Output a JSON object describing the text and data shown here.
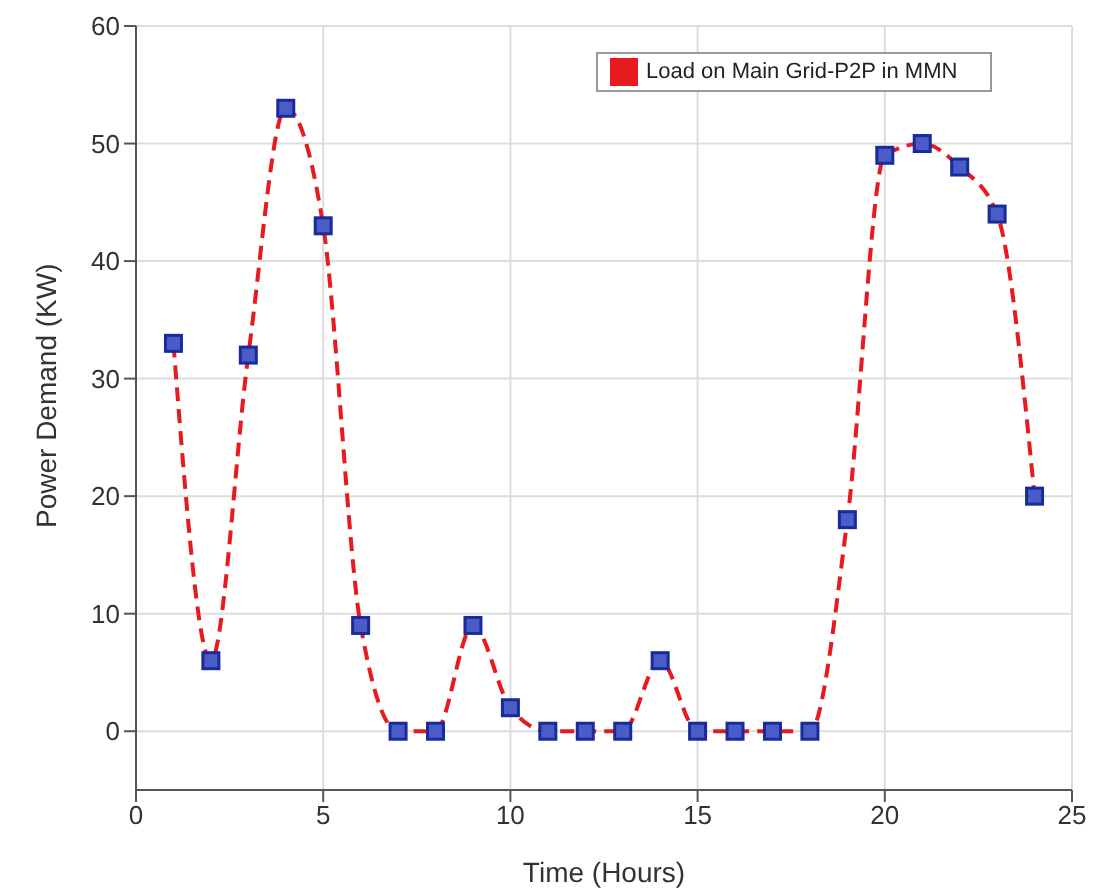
{
  "chart_data": {
    "type": "line",
    "xlabel": "Time (Hours)",
    "ylabel": "Power Demand (KW)",
    "x": [
      1,
      2,
      3,
      4,
      5,
      6,
      7,
      8,
      9,
      10,
      11,
      12,
      13,
      14,
      15,
      16,
      17,
      18,
      19,
      20,
      21,
      22,
      23,
      24
    ],
    "series": [
      {
        "name": "Load on Main Grid-P2P in MMN",
        "color": "#e8191f",
        "values": [
          33,
          6,
          32,
          53,
          43,
          9,
          0,
          0,
          9,
          2,
          0,
          0,
          0,
          6,
          0,
          0,
          0,
          0,
          18,
          49,
          50,
          48,
          44,
          20
        ]
      }
    ],
    "xlim": [
      0,
      25
    ],
    "xticks": [
      0,
      5,
      10,
      15,
      20,
      25
    ],
    "ylim": [
      -5,
      60
    ],
    "yticks": [
      0,
      10,
      20,
      30,
      40,
      50,
      60
    ],
    "grid": true,
    "legend": "top right",
    "marker": "square",
    "line_style": "dashed"
  }
}
